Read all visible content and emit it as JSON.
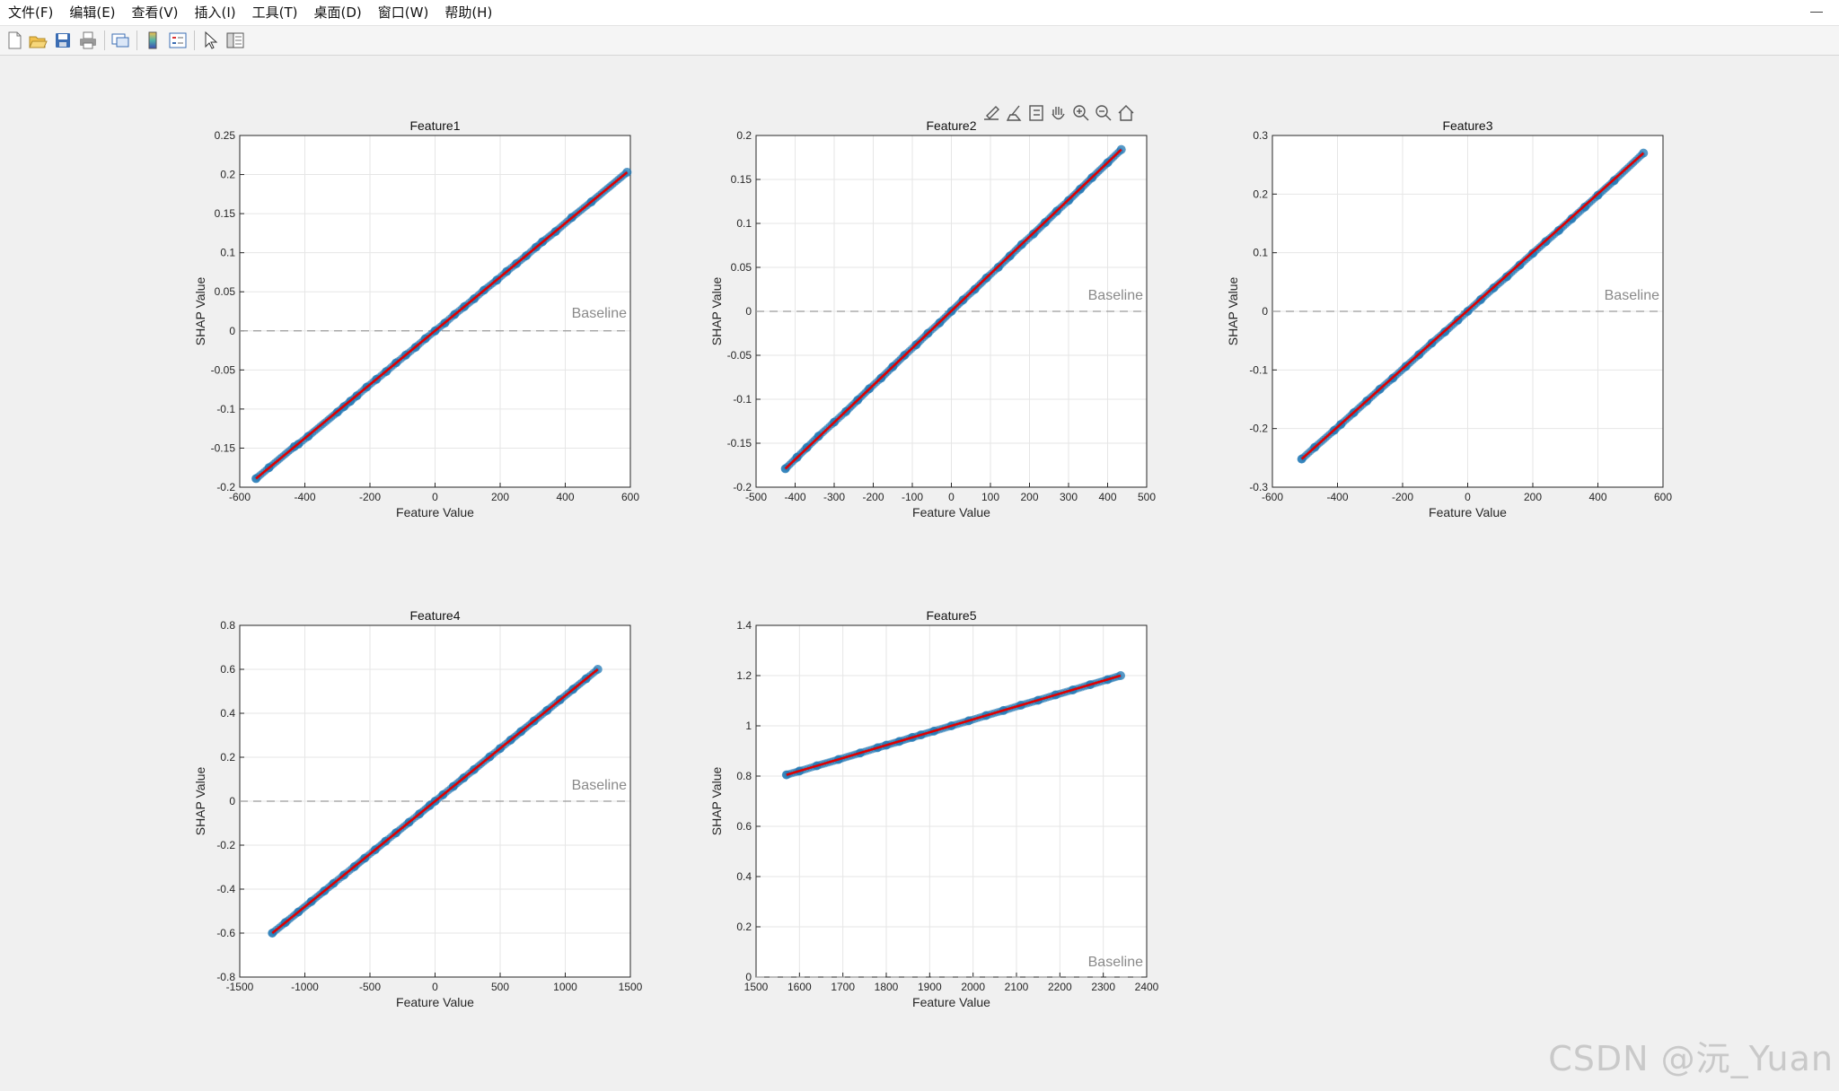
{
  "menu": [
    "文件(F)",
    "编辑(E)",
    "查看(V)",
    "插入(I)",
    "工具(T)",
    "桌面(D)",
    "窗口(W)",
    "帮助(H)"
  ],
  "window_controls": {
    "minimize": "—"
  },
  "toolbar_icons": [
    "new-figure-icon",
    "open-file-icon",
    "save-icon",
    "print-icon",
    "link-plot-icon",
    "colorbar-icon",
    "legend-icon",
    "select-arrow-icon",
    "property-inspector-icon"
  ],
  "axes_toolbar_icons": [
    "export-icon",
    "brush-icon",
    "datatip-icon",
    "pan-icon",
    "zoom-in-icon",
    "zoom-out-icon",
    "home-icon"
  ],
  "colors": {
    "scatter": "#1f77b4",
    "fit_line": "#e00000",
    "baseline": "#9a9a9a",
    "grid": "#e6e6e6"
  },
  "watermark": "CSDN @沅_Yuan",
  "chart_data": [
    {
      "type": "scatter",
      "title": "Feature1",
      "xlabel": "Feature Value",
      "ylabel": "SHAP Value",
      "xlim": [
        -600,
        600
      ],
      "ylim": [
        -0.2,
        0.25
      ],
      "xticks": [
        -600,
        -400,
        -200,
        0,
        200,
        400,
        600
      ],
      "yticks": [
        -0.2,
        -0.15,
        -0.1,
        -0.05,
        0,
        0.05,
        0.1,
        0.15,
        0.2,
        0.25
      ],
      "xtick_labels": [
        "-600",
        "-400",
        "-200",
        "0",
        "200",
        "400",
        "600"
      ],
      "ytick_labels": [
        "-0.2",
        "-0.15",
        "-0.1",
        "-0.05",
        "0",
        "0.05",
        "0.1",
        "0.15",
        "0.2",
        "0.25"
      ],
      "grid": true,
      "baseline_label": "Baseline",
      "baseline_y": 0,
      "fit_line": [
        [
          -550,
          -0.189
        ],
        [
          590,
          0.203
        ]
      ],
      "points": [
        [
          -550,
          -0.189
        ],
        [
          -510,
          -0.175
        ],
        [
          -432,
          -0.148
        ],
        [
          -420,
          -0.145
        ],
        [
          -390,
          -0.135
        ],
        [
          -300,
          -0.104
        ],
        [
          -280,
          -0.097
        ],
        [
          -260,
          -0.09
        ],
        [
          -240,
          -0.083
        ],
        [
          -210,
          -0.072
        ],
        [
          -180,
          -0.062
        ],
        [
          -150,
          -0.052
        ],
        [
          -120,
          -0.041
        ],
        [
          -90,
          -0.031
        ],
        [
          -60,
          -0.021
        ],
        [
          -30,
          -0.01
        ],
        [
          0,
          0.0
        ],
        [
          30,
          0.01
        ],
        [
          60,
          0.021
        ],
        [
          90,
          0.031
        ],
        [
          120,
          0.041
        ],
        [
          150,
          0.052
        ],
        [
          190,
          0.065
        ],
        [
          220,
          0.076
        ],
        [
          250,
          0.086
        ],
        [
          280,
          0.096
        ],
        [
          310,
          0.107
        ],
        [
          330,
          0.114
        ],
        [
          370,
          0.127
        ],
        [
          420,
          0.145
        ],
        [
          480,
          0.165
        ],
        [
          590,
          0.203
        ]
      ]
    },
    {
      "type": "scatter",
      "title": "Feature2",
      "xlabel": "Feature Value",
      "ylabel": "SHAP Value",
      "xlim": [
        -500,
        500
      ],
      "ylim": [
        -0.2,
        0.2
      ],
      "xticks": [
        -500,
        -400,
        -300,
        -200,
        -100,
        0,
        100,
        200,
        300,
        400,
        500
      ],
      "yticks": [
        -0.2,
        -0.15,
        -0.1,
        -0.05,
        0,
        0.05,
        0.1,
        0.15,
        0.2
      ],
      "xtick_labels": [
        "-500",
        "-400",
        "-300",
        "-200",
        "-100",
        "0",
        "100",
        "200",
        "300",
        "400",
        "500"
      ],
      "ytick_labels": [
        "-0.2",
        "-0.15",
        "-0.1",
        "-0.05",
        "0",
        "0.05",
        "0.1",
        "0.15",
        "0.2"
      ],
      "grid": true,
      "baseline_label": "Baseline",
      "baseline_y": 0,
      "fit_line": [
        [
          -425,
          -0.179
        ],
        [
          435,
          0.184
        ]
      ],
      "points": [
        [
          -425,
          -0.179
        ],
        [
          -395,
          -0.166
        ],
        [
          -370,
          -0.155
        ],
        [
          -340,
          -0.142
        ],
        [
          -300,
          -0.126
        ],
        [
          -270,
          -0.114
        ],
        [
          -240,
          -0.101
        ],
        [
          -210,
          -0.088
        ],
        [
          -180,
          -0.076
        ],
        [
          -150,
          -0.063
        ],
        [
          -120,
          -0.05
        ],
        [
          -90,
          -0.038
        ],
        [
          -60,
          -0.025
        ],
        [
          -30,
          -0.013
        ],
        [
          0,
          0.0
        ],
        [
          30,
          0.013
        ],
        [
          60,
          0.025
        ],
        [
          90,
          0.038
        ],
        [
          120,
          0.05
        ],
        [
          150,
          0.063
        ],
        [
          180,
          0.076
        ],
        [
          210,
          0.088
        ],
        [
          240,
          0.101
        ],
        [
          270,
          0.114
        ],
        [
          300,
          0.126
        ],
        [
          330,
          0.139
        ],
        [
          360,
          0.152
        ],
        [
          400,
          0.169
        ],
        [
          435,
          0.184
        ]
      ]
    },
    {
      "type": "scatter",
      "title": "Feature3",
      "xlabel": "Feature Value",
      "ylabel": "SHAP Value",
      "xlim": [
        -600,
        600
      ],
      "ylim": [
        -0.3,
        0.3
      ],
      "xticks": [
        -600,
        -400,
        -200,
        0,
        200,
        400,
        600
      ],
      "yticks": [
        -0.3,
        -0.2,
        -0.1,
        0,
        0.1,
        0.2,
        0.3
      ],
      "xtick_labels": [
        "-600",
        "-400",
        "-200",
        "0",
        "200",
        "400",
        "600"
      ],
      "ytick_labels": [
        "-0.3",
        "-0.2",
        "-0.1",
        "0",
        "0.1",
        "0.2",
        "0.3"
      ],
      "grid": true,
      "baseline_label": "Baseline",
      "baseline_y": 0,
      "fit_line": [
        [
          -510,
          -0.252
        ],
        [
          540,
          0.27
        ]
      ],
      "points": [
        [
          -510,
          -0.252
        ],
        [
          -470,
          -0.232
        ],
        [
          -410,
          -0.203
        ],
        [
          -390,
          -0.193
        ],
        [
          -350,
          -0.173
        ],
        [
          -310,
          -0.153
        ],
        [
          -270,
          -0.133
        ],
        [
          -230,
          -0.114
        ],
        [
          -190,
          -0.094
        ],
        [
          -150,
          -0.074
        ],
        [
          -110,
          -0.054
        ],
        [
          -70,
          -0.035
        ],
        [
          -30,
          -0.015
        ],
        [
          0,
          0.0
        ],
        [
          40,
          0.02
        ],
        [
          80,
          0.04
        ],
        [
          120,
          0.059
        ],
        [
          160,
          0.079
        ],
        [
          200,
          0.099
        ],
        [
          240,
          0.119
        ],
        [
          280,
          0.138
        ],
        [
          320,
          0.158
        ],
        [
          360,
          0.178
        ],
        [
          400,
          0.198
        ],
        [
          450,
          0.223
        ],
        [
          540,
          0.27
        ]
      ]
    },
    {
      "type": "scatter",
      "title": "Feature4",
      "xlabel": "Feature Value",
      "ylabel": "SHAP Value",
      "xlim": [
        -1500,
        1500
      ],
      "ylim": [
        -0.8,
        0.8
      ],
      "xticks": [
        -1500,
        -1000,
        -500,
        0,
        500,
        1000,
        1500
      ],
      "yticks": [
        -0.8,
        -0.6,
        -0.4,
        -0.2,
        0,
        0.2,
        0.4,
        0.6,
        0.8
      ],
      "xtick_labels": [
        "-1500",
        "-1000",
        "-500",
        "0",
        "500",
        "1000",
        "1500"
      ],
      "ytick_labels": [
        "-0.8",
        "-0.6",
        "-0.4",
        "-0.2",
        "0",
        "0.2",
        "0.4",
        "0.6",
        "0.8"
      ],
      "grid": true,
      "baseline_label": "Baseline",
      "baseline_y": 0,
      "fit_line": [
        [
          -1250,
          -0.6
        ],
        [
          1250,
          0.6
        ]
      ],
      "points": [
        [
          -1250,
          -0.6
        ],
        [
          -1150,
          -0.552
        ],
        [
          -1050,
          -0.504
        ],
        [
          -950,
          -0.456
        ],
        [
          -850,
          -0.408
        ],
        [
          -780,
          -0.374
        ],
        [
          -700,
          -0.336
        ],
        [
          -620,
          -0.298
        ],
        [
          -540,
          -0.259
        ],
        [
          -460,
          -0.221
        ],
        [
          -380,
          -0.182
        ],
        [
          -300,
          -0.144
        ],
        [
          -200,
          -0.096
        ],
        [
          -120,
          -0.058
        ],
        [
          -40,
          -0.019
        ],
        [
          0,
          0.0
        ],
        [
          60,
          0.029
        ],
        [
          140,
          0.067
        ],
        [
          220,
          0.106
        ],
        [
          300,
          0.144
        ],
        [
          420,
          0.202
        ],
        [
          500,
          0.24
        ],
        [
          580,
          0.278
        ],
        [
          660,
          0.317
        ],
        [
          760,
          0.365
        ],
        [
          860,
          0.413
        ],
        [
          960,
          0.461
        ],
        [
          1060,
          0.509
        ],
        [
          1160,
          0.557
        ],
        [
          1250,
          0.6
        ]
      ]
    },
    {
      "type": "scatter",
      "title": "Feature5",
      "xlabel": "Feature Value",
      "ylabel": "SHAP Value",
      "xlim": [
        1500,
        2400
      ],
      "ylim": [
        0,
        1.4
      ],
      "xticks": [
        1500,
        1600,
        1700,
        1800,
        1900,
        2000,
        2100,
        2200,
        2300,
        2400
      ],
      "yticks": [
        0,
        0.2,
        0.4,
        0.6,
        0.8,
        1,
        1.2,
        1.4
      ],
      "xtick_labels": [
        "1500",
        "1600",
        "1700",
        "1800",
        "1900",
        "2000",
        "2100",
        "2200",
        "2300",
        "2400"
      ],
      "ytick_labels": [
        "0",
        "0.2",
        "0.4",
        "0.6",
        "0.8",
        "1",
        "1.2",
        "1.4"
      ],
      "grid": true,
      "baseline_label": "Baseline",
      "baseline_y": 0,
      "fit_line": [
        [
          1570,
          0.805
        ],
        [
          2340,
          1.2
        ]
      ],
      "points": [
        [
          1570,
          0.805
        ],
        [
          1600,
          0.82
        ],
        [
          1640,
          0.841
        ],
        [
          1690,
          0.866
        ],
        [
          1740,
          0.892
        ],
        [
          1780,
          0.913
        ],
        [
          1800,
          0.923
        ],
        [
          1830,
          0.938
        ],
        [
          1860,
          0.954
        ],
        [
          1880,
          0.964
        ],
        [
          1910,
          0.979
        ],
        [
          1950,
          1.0
        ],
        [
          1990,
          1.02
        ],
        [
          2030,
          1.041
        ],
        [
          2070,
          1.061
        ],
        [
          2110,
          1.082
        ],
        [
          2150,
          1.102
        ],
        [
          2190,
          1.123
        ],
        [
          2230,
          1.143
        ],
        [
          2270,
          1.164
        ],
        [
          2310,
          1.184
        ],
        [
          2340,
          1.2
        ]
      ]
    }
  ]
}
